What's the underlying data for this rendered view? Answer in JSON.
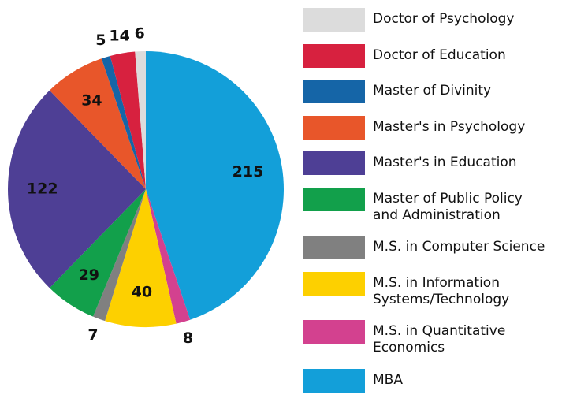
{
  "chart_data": {
    "type": "pie",
    "series": [
      {
        "name": "MBA",
        "color": "#139fd9",
        "values": [
          215
        ]
      },
      {
        "name": "M.S. in Quantitative\nEconomics",
        "color": "#d3418f",
        "values": [
          8
        ]
      },
      {
        "name": "M.S. in Information\nSystems/Technology",
        "color": "#fdd000",
        "values": [
          40
        ]
      },
      {
        "name": "M.S. in Computer Science",
        "color": "#808080",
        "values": [
          7
        ]
      },
      {
        "name": "Master of Public Policy\nand Administration",
        "color": "#12a04b",
        "values": [
          29
        ]
      },
      {
        "name": "Master's in Education",
        "color": "#4e3f95",
        "values": [
          122
        ]
      },
      {
        "name": "Master's in Psychology",
        "color": "#e8562a",
        "values": [
          34
        ]
      },
      {
        "name": "Master of Divinity",
        "color": "#1565a7",
        "values": [
          5
        ]
      },
      {
        "name": "Doctor of Education",
        "color": "#d7213f",
        "values": [
          14
        ]
      },
      {
        "name": "Doctor of Psychology",
        "color": "#dcdcdc",
        "values": [
          6
        ]
      }
    ]
  }
}
